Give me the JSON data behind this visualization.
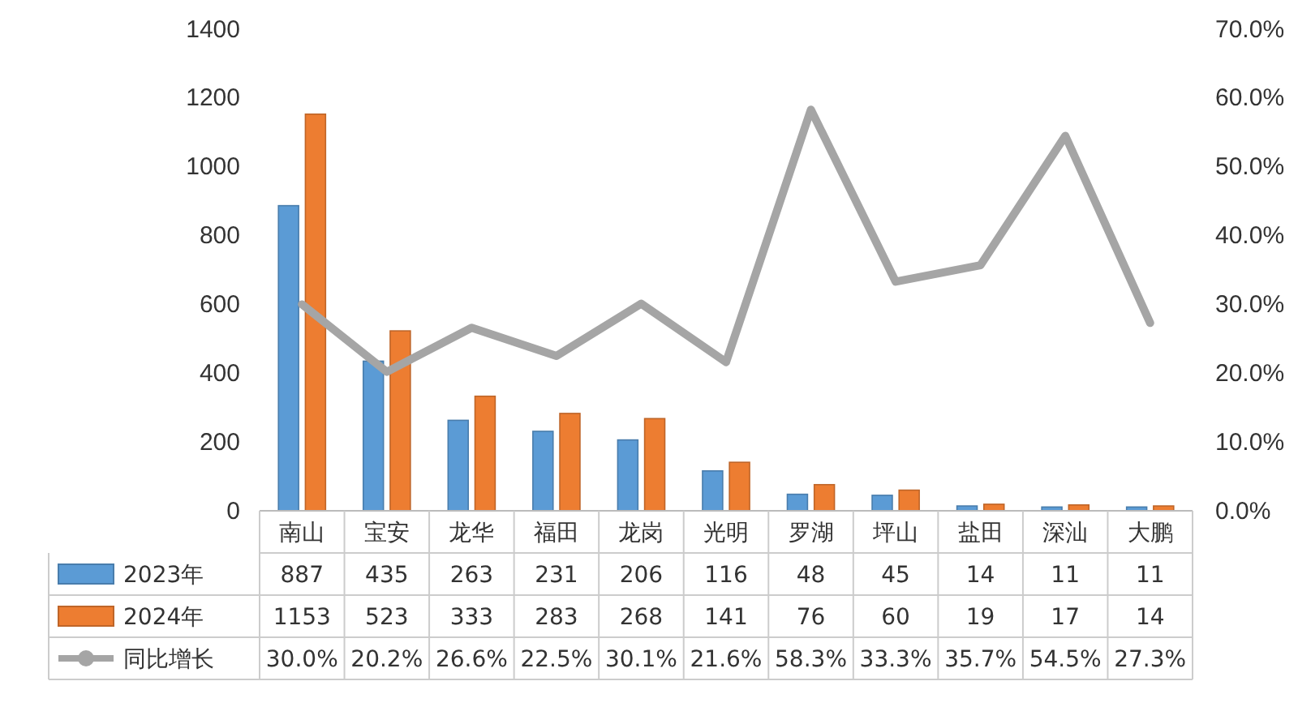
{
  "chart_data": {
    "type": "bar",
    "categories": [
      "南山",
      "宝安",
      "龙华",
      "福田",
      "龙岗",
      "光明",
      "罗湖",
      "坪山",
      "盐田",
      "深汕",
      "大鹏"
    ],
    "series": [
      {
        "name": "2023年",
        "color": "#5b9bd5",
        "values": [
          887,
          435,
          263,
          231,
          206,
          116,
          48,
          45,
          14,
          11,
          11
        ],
        "value_labels": [
          "887",
          "435",
          "263",
          "231",
          "206",
          "116",
          "48",
          "45",
          "14",
          "11",
          "11"
        ]
      },
      {
        "name": "2024年",
        "color": "#ed7d31",
        "values": [
          1153,
          523,
          333,
          283,
          268,
          141,
          76,
          60,
          19,
          17,
          14
        ],
        "value_labels": [
          "1153",
          "523",
          "333",
          "283",
          "268",
          "141",
          "76",
          "60",
          "19",
          "17",
          "14"
        ]
      },
      {
        "name": "同比增长",
        "type": "line",
        "axis": "y2",
        "color": "#a5a5a5",
        "values": [
          30.0,
          20.2,
          26.6,
          22.5,
          30.1,
          21.6,
          58.3,
          33.3,
          35.7,
          54.5,
          27.3
        ],
        "value_labels": [
          "30.0%",
          "20.2%",
          "26.6%",
          "22.5%",
          "30.1%",
          "21.6%",
          "58.3%",
          "33.3%",
          "35.7%",
          "54.5%",
          "27.3%"
        ]
      }
    ],
    "ylim": [
      0,
      1400
    ],
    "yticks": [
      0,
      200,
      400,
      600,
      800,
      1000,
      1200,
      1400
    ],
    "y2lim": [
      0,
      70
    ],
    "y2ticks": [
      {
        "value": 0,
        "label": "0.0%"
      },
      {
        "value": 10,
        "label": "10.0%"
      },
      {
        "value": 20,
        "label": "20.0%"
      },
      {
        "value": 30,
        "label": "30.0%"
      },
      {
        "value": 40,
        "label": "40.0%"
      },
      {
        "value": 50,
        "label": "50.0%"
      },
      {
        "value": 60,
        "label": "60.0%"
      },
      {
        "value": 70,
        "label": "70.0%"
      }
    ],
    "legend": "bottom",
    "grid": false,
    "line_style": "solid"
  }
}
